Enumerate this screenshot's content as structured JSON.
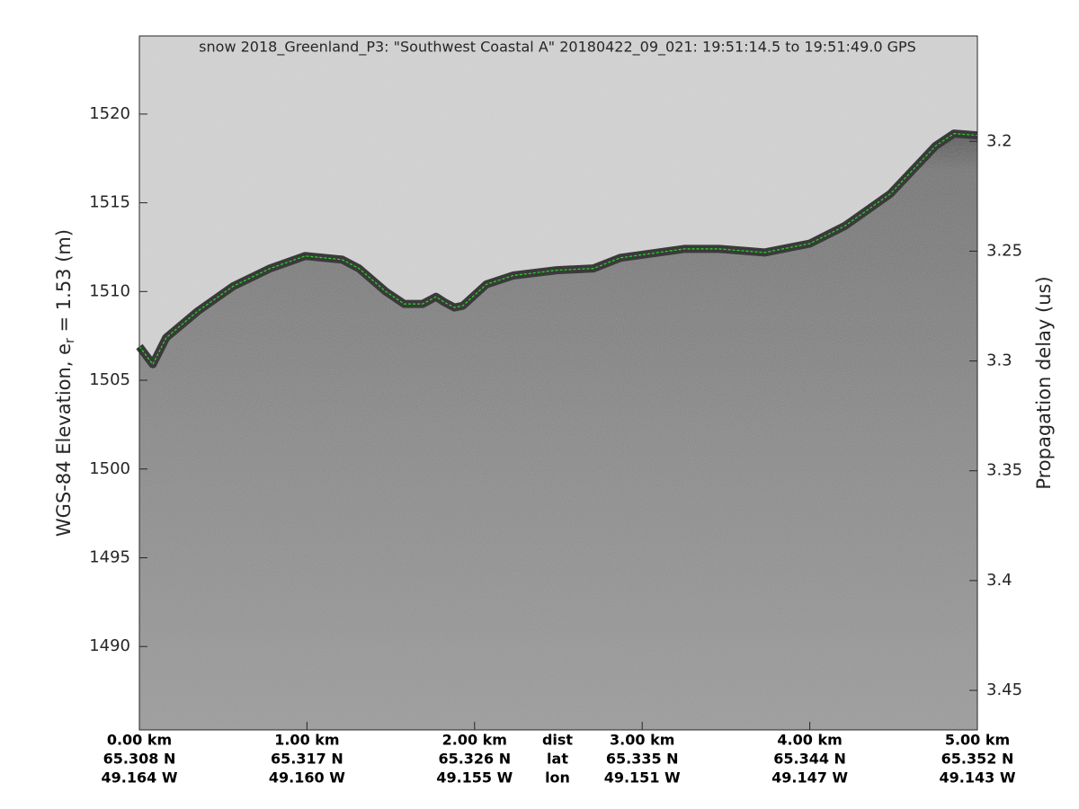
{
  "chart_data": {
    "type": "line",
    "title": "snow 2018_Greenland_P3: \"Southwest Coastal A\"  20180422_09_021: 19:51:14.5 to 19:51:49.0 GPS",
    "ylabel": [
      "WGS-84 Elevation, e",
      "r",
      " = 1.53 (m)"
    ],
    "y2label": "Propagation delay (us)",
    "x_row_names": [
      "dist",
      "lat",
      "lon"
    ],
    "xlim": [
      0,
      5
    ],
    "xticks": [
      {
        "value": 0,
        "label": "0.00 km"
      },
      {
        "value": 1,
        "label": "1.00 km"
      },
      {
        "value": 2,
        "label": "2.00 km"
      },
      {
        "value": 3,
        "label": "3.00 km"
      },
      {
        "value": 4,
        "label": "4.00 km"
      },
      {
        "value": 5,
        "label": "5.00 km"
      }
    ],
    "lat_labels": [
      "65.308 N",
      "65.317 N",
      "65.326 N",
      "65.335 N",
      "65.344 N",
      "65.352 N"
    ],
    "lon_labels": [
      "49.164 W",
      "49.160 W",
      "49.155 W",
      "49.151 W",
      "49.147 W",
      "49.143 W"
    ],
    "ylim": [
      1485.3,
      1524.4
    ],
    "yticks": [
      1490,
      1495,
      1500,
      1505,
      1510,
      1515,
      1520
    ],
    "y2lim": [
      3.468,
      3.152
    ],
    "y2ticks": [
      3.2,
      3.25,
      3.3,
      3.35,
      3.4,
      3.45
    ],
    "series": [
      {
        "name": "surface",
        "color": "#22dd22",
        "x": [
          0,
          0.08,
          0.16,
          0.35,
          0.56,
          0.78,
          0.99,
          1.21,
          1.31,
          1.47,
          1.58,
          1.69,
          1.77,
          1.82,
          1.88,
          1.93,
          2.07,
          2.23,
          2.49,
          2.71,
          2.87,
          3.25,
          3.46,
          3.73,
          4.0,
          4.21,
          4.48,
          4.75,
          4.86,
          5.0
        ],
        "values": [
          1506.9,
          1505.9,
          1507.4,
          1508.9,
          1510.3,
          1511.3,
          1512.0,
          1511.8,
          1511.3,
          1510.0,
          1509.3,
          1509.3,
          1509.7,
          1509.4,
          1509.1,
          1509.2,
          1510.4,
          1510.9,
          1511.2,
          1511.3,
          1511.9,
          1512.4,
          1512.4,
          1512.2,
          1512.7,
          1513.7,
          1515.5,
          1518.2,
          1518.9,
          1518.8
        ]
      }
    ]
  }
}
